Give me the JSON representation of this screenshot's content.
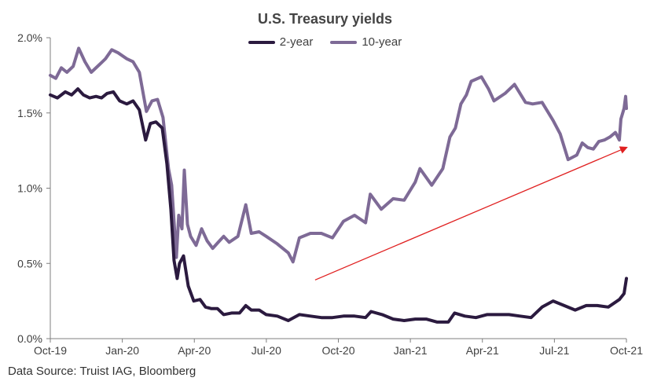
{
  "chart_data": {
    "type": "line",
    "title": "U.S. Treasury yields",
    "source": "Data Source: Truist IAG, Bloomberg",
    "x_tick_labels": [
      "Oct-19",
      "Jan-20",
      "Apr-20",
      "Jul-20",
      "Oct-20",
      "Jan-21",
      "Apr-21",
      "Jul-21",
      "Oct-21"
    ],
    "x_range": [
      "2019-10-01",
      "2021-10-01"
    ],
    "y_tick_labels": [
      "0.0%",
      "0.5%",
      "1.0%",
      "1.5%",
      "2.0%"
    ],
    "ylim": [
      0,
      2.0
    ],
    "y_unit": "%",
    "grid": false,
    "legend_position": "top-center",
    "series": [
      {
        "name": "2-year",
        "color": "#2b1a3f",
        "points": [
          [
            "2019-10-01",
            1.62
          ],
          [
            "2019-10-10",
            1.6
          ],
          [
            "2019-10-20",
            1.64
          ],
          [
            "2019-10-28",
            1.62
          ],
          [
            "2019-11-05",
            1.66
          ],
          [
            "2019-11-12",
            1.62
          ],
          [
            "2019-11-20",
            1.6
          ],
          [
            "2019-11-28",
            1.61
          ],
          [
            "2019-12-05",
            1.6
          ],
          [
            "2019-12-12",
            1.63
          ],
          [
            "2019-12-20",
            1.64
          ],
          [
            "2019-12-28",
            1.58
          ],
          [
            "2020-01-06",
            1.56
          ],
          [
            "2020-01-14",
            1.58
          ],
          [
            "2020-01-22",
            1.52
          ],
          [
            "2020-01-30",
            1.32
          ],
          [
            "2020-02-05",
            1.43
          ],
          [
            "2020-02-12",
            1.44
          ],
          [
            "2020-02-20",
            1.4
          ],
          [
            "2020-02-26",
            1.16
          ],
          [
            "2020-03-02",
            0.86
          ],
          [
            "2020-03-06",
            0.52
          ],
          [
            "2020-03-10",
            0.4
          ],
          [
            "2020-03-13",
            0.5
          ],
          [
            "2020-03-18",
            0.55
          ],
          [
            "2020-03-24",
            0.35
          ],
          [
            "2020-03-31",
            0.25
          ],
          [
            "2020-04-08",
            0.26
          ],
          [
            "2020-04-15",
            0.21
          ],
          [
            "2020-04-22",
            0.2
          ],
          [
            "2020-04-30",
            0.2
          ],
          [
            "2020-05-08",
            0.16
          ],
          [
            "2020-05-18",
            0.17
          ],
          [
            "2020-05-28",
            0.17
          ],
          [
            "2020-06-05",
            0.22
          ],
          [
            "2020-06-12",
            0.19
          ],
          [
            "2020-06-22",
            0.19
          ],
          [
            "2020-07-01",
            0.16
          ],
          [
            "2020-07-15",
            0.15
          ],
          [
            "2020-07-29",
            0.12
          ],
          [
            "2020-08-12",
            0.16
          ],
          [
            "2020-08-26",
            0.15
          ],
          [
            "2020-09-09",
            0.14
          ],
          [
            "2020-09-23",
            0.14
          ],
          [
            "2020-10-07",
            0.15
          ],
          [
            "2020-10-21",
            0.15
          ],
          [
            "2020-11-04",
            0.14
          ],
          [
            "2020-11-11",
            0.18
          ],
          [
            "2020-11-25",
            0.16
          ],
          [
            "2020-12-09",
            0.13
          ],
          [
            "2020-12-23",
            0.12
          ],
          [
            "2021-01-06",
            0.13
          ],
          [
            "2021-01-20",
            0.13
          ],
          [
            "2021-02-03",
            0.11
          ],
          [
            "2021-02-17",
            0.11
          ],
          [
            "2021-02-25",
            0.17
          ],
          [
            "2021-03-10",
            0.15
          ],
          [
            "2021-03-24",
            0.14
          ],
          [
            "2021-04-07",
            0.16
          ],
          [
            "2021-04-21",
            0.16
          ],
          [
            "2021-05-05",
            0.16
          ],
          [
            "2021-05-19",
            0.15
          ],
          [
            "2021-06-02",
            0.14
          ],
          [
            "2021-06-16",
            0.21
          ],
          [
            "2021-06-30",
            0.25
          ],
          [
            "2021-07-14",
            0.22
          ],
          [
            "2021-07-28",
            0.19
          ],
          [
            "2021-08-11",
            0.22
          ],
          [
            "2021-08-25",
            0.22
          ],
          [
            "2021-09-08",
            0.21
          ],
          [
            "2021-09-22",
            0.26
          ],
          [
            "2021-09-28",
            0.3
          ],
          [
            "2021-10-01",
            0.4
          ]
        ]
      },
      {
        "name": "10-year",
        "color": "#7e6a96",
        "points": [
          [
            "2019-10-01",
            1.75
          ],
          [
            "2019-10-08",
            1.73
          ],
          [
            "2019-10-15",
            1.8
          ],
          [
            "2019-10-22",
            1.77
          ],
          [
            "2019-10-30",
            1.81
          ],
          [
            "2019-11-06",
            1.93
          ],
          [
            "2019-11-14",
            1.84
          ],
          [
            "2019-11-22",
            1.77
          ],
          [
            "2019-12-02",
            1.82
          ],
          [
            "2019-12-10",
            1.86
          ],
          [
            "2019-12-18",
            1.92
          ],
          [
            "2019-12-26",
            1.9
          ],
          [
            "2020-01-06",
            1.86
          ],
          [
            "2020-01-14",
            1.84
          ],
          [
            "2020-01-22",
            1.77
          ],
          [
            "2020-01-31",
            1.51
          ],
          [
            "2020-02-07",
            1.58
          ],
          [
            "2020-02-14",
            1.59
          ],
          [
            "2020-02-21",
            1.47
          ],
          [
            "2020-02-28",
            1.13
          ],
          [
            "2020-03-03",
            1.02
          ],
          [
            "2020-03-09",
            0.54
          ],
          [
            "2020-03-12",
            0.82
          ],
          [
            "2020-03-16",
            0.73
          ],
          [
            "2020-03-19",
            1.12
          ],
          [
            "2020-03-23",
            0.76
          ],
          [
            "2020-03-27",
            0.68
          ],
          [
            "2020-04-03",
            0.62
          ],
          [
            "2020-04-10",
            0.73
          ],
          [
            "2020-04-17",
            0.65
          ],
          [
            "2020-04-24",
            0.6
          ],
          [
            "2020-05-01",
            0.64
          ],
          [
            "2020-05-08",
            0.68
          ],
          [
            "2020-05-15",
            0.64
          ],
          [
            "2020-05-26",
            0.68
          ],
          [
            "2020-06-05",
            0.89
          ],
          [
            "2020-06-12",
            0.7
          ],
          [
            "2020-06-22",
            0.71
          ],
          [
            "2020-07-01",
            0.68
          ],
          [
            "2020-07-15",
            0.63
          ],
          [
            "2020-07-29",
            0.57
          ],
          [
            "2020-08-04",
            0.51
          ],
          [
            "2020-08-12",
            0.67
          ],
          [
            "2020-08-26",
            0.7
          ],
          [
            "2020-09-09",
            0.7
          ],
          [
            "2020-09-23",
            0.67
          ],
          [
            "2020-10-07",
            0.78
          ],
          [
            "2020-10-21",
            0.82
          ],
          [
            "2020-11-04",
            0.77
          ],
          [
            "2020-11-10",
            0.96
          ],
          [
            "2020-11-24",
            0.86
          ],
          [
            "2020-12-09",
            0.93
          ],
          [
            "2020-12-23",
            0.92
          ],
          [
            "2021-01-06",
            1.04
          ],
          [
            "2021-01-12",
            1.13
          ],
          [
            "2021-01-27",
            1.02
          ],
          [
            "2021-02-10",
            1.13
          ],
          [
            "2021-02-19",
            1.34
          ],
          [
            "2021-02-26",
            1.4
          ],
          [
            "2021-03-05",
            1.56
          ],
          [
            "2021-03-12",
            1.62
          ],
          [
            "2021-03-18",
            1.71
          ],
          [
            "2021-03-31",
            1.74
          ],
          [
            "2021-04-09",
            1.66
          ],
          [
            "2021-04-16",
            1.58
          ],
          [
            "2021-04-30",
            1.63
          ],
          [
            "2021-05-12",
            1.69
          ],
          [
            "2021-05-26",
            1.57
          ],
          [
            "2021-06-04",
            1.56
          ],
          [
            "2021-06-16",
            1.57
          ],
          [
            "2021-06-30",
            1.45
          ],
          [
            "2021-07-09",
            1.36
          ],
          [
            "2021-07-19",
            1.19
          ],
          [
            "2021-07-30",
            1.22
          ],
          [
            "2021-08-06",
            1.3
          ],
          [
            "2021-08-13",
            1.27
          ],
          [
            "2021-08-20",
            1.26
          ],
          [
            "2021-08-27",
            1.31
          ],
          [
            "2021-09-03",
            1.32
          ],
          [
            "2021-09-10",
            1.34
          ],
          [
            "2021-09-17",
            1.37
          ],
          [
            "2021-09-22",
            1.32
          ],
          [
            "2021-09-24",
            1.46
          ],
          [
            "2021-09-28",
            1.53
          ],
          [
            "2021-09-30",
            1.61
          ],
          [
            "2021-10-01",
            1.53
          ]
        ]
      }
    ],
    "annotation": {
      "type": "arrow",
      "color": "#e02020",
      "from": [
        "2020-09-01",
        0.39
      ],
      "to": [
        "2021-10-01",
        1.27
      ]
    }
  }
}
